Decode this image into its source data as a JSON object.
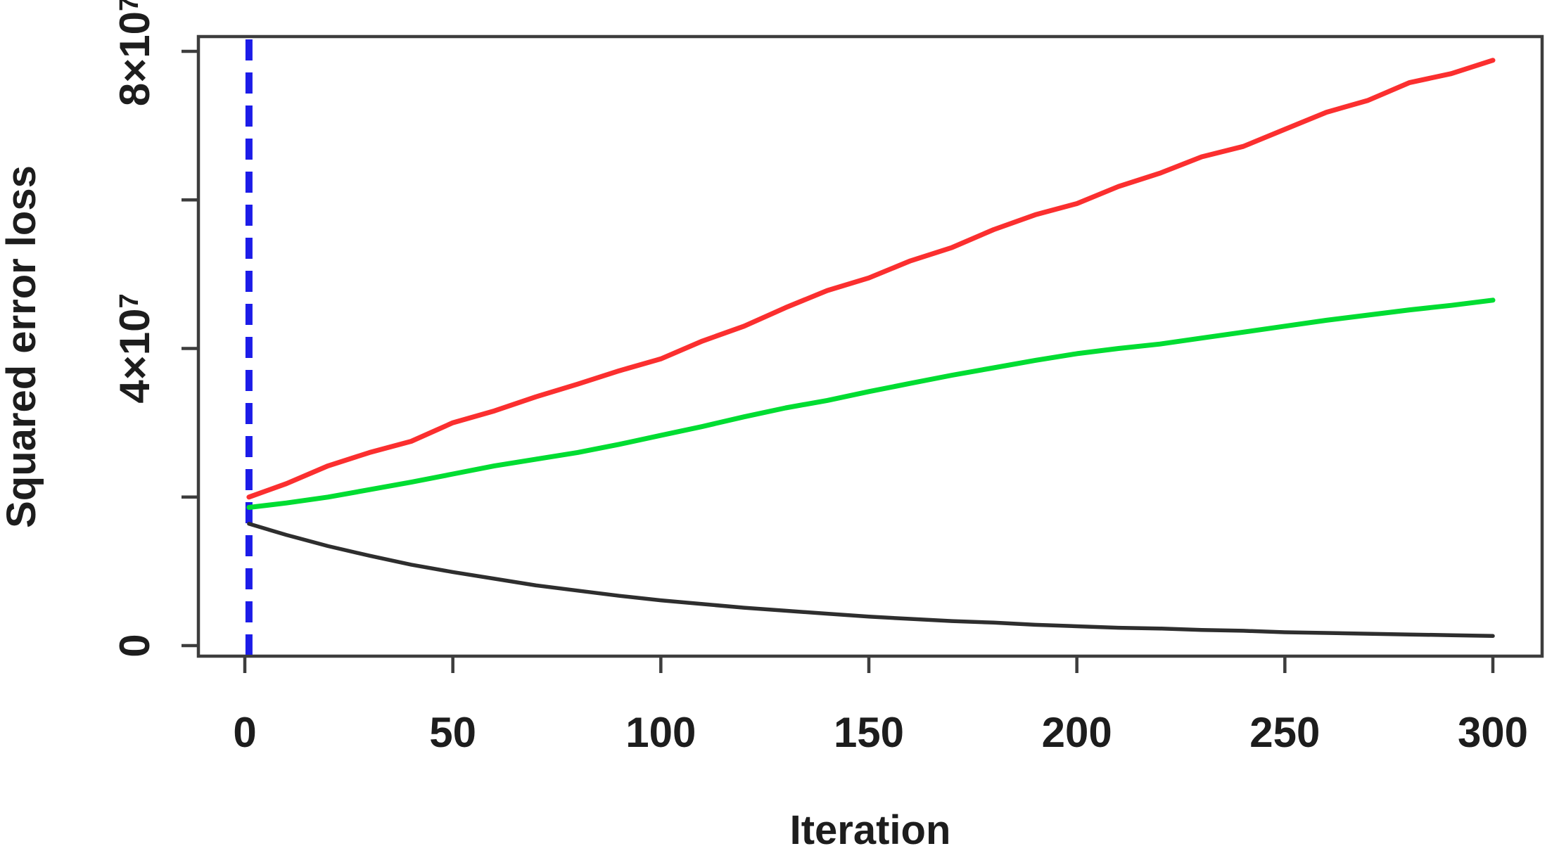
{
  "figure": {
    "background_color": "#ffffff",
    "box_color": "#3d3d3d",
    "text_color": "#1d1d1d"
  },
  "chart_data": {
    "type": "line",
    "title": "",
    "xlabel": "Iteration",
    "ylabel": "Squared error loss",
    "xlim": [
      -11,
      312
    ],
    "ylim": [
      0,
      83000000
    ],
    "grid": false,
    "legend": "none",
    "value_unit_multiplier": 10000000,
    "x_ticks": [
      {
        "value": 0,
        "label": "0"
      },
      {
        "value": 50,
        "label": "50"
      },
      {
        "value": 100,
        "label": "100"
      },
      {
        "value": 150,
        "label": "150"
      },
      {
        "value": 200,
        "label": "200"
      },
      {
        "value": 250,
        "label": "250"
      },
      {
        "value": 300,
        "label": "300"
      }
    ],
    "y_ticks": [
      {
        "value": 0,
        "label": "0",
        "sup": ""
      },
      {
        "value": 2,
        "label": "",
        "sup": ""
      },
      {
        "value": 4,
        "label": "4×10",
        "sup": "7"
      },
      {
        "value": 6,
        "label": "",
        "sup": ""
      },
      {
        "value": 8,
        "label": "8×10",
        "sup": "7"
      }
    ],
    "vline": {
      "x": 1,
      "color": "#1c1ce8",
      "style": "dashed",
      "dash": [
        30,
        17
      ],
      "width": 10
    },
    "x": [
      1,
      10,
      20,
      30,
      40,
      50,
      60,
      70,
      80,
      90,
      100,
      110,
      120,
      130,
      140,
      150,
      160,
      170,
      180,
      190,
      200,
      210,
      220,
      230,
      240,
      250,
      260,
      270,
      280,
      290,
      300
    ],
    "series": [
      {
        "name": "red-line",
        "color": "#fb2f2f",
        "width": 7,
        "values_e7": [
          2.0,
          2.18,
          2.42,
          2.6,
          2.75,
          3.0,
          3.16,
          3.35,
          3.52,
          3.7,
          3.86,
          4.1,
          4.3,
          4.55,
          4.78,
          4.95,
          5.18,
          5.36,
          5.6,
          5.8,
          5.95,
          6.18,
          6.36,
          6.58,
          6.72,
          6.95,
          7.18,
          7.34,
          7.58,
          7.7,
          7.88
        ]
      },
      {
        "name": "green-line",
        "color": "#00dd32",
        "width": 7,
        "values_e7": [
          1.86,
          1.92,
          2.0,
          2.1,
          2.2,
          2.31,
          2.42,
          2.51,
          2.6,
          2.71,
          2.83,
          2.95,
          3.08,
          3.2,
          3.3,
          3.42,
          3.53,
          3.64,
          3.74,
          3.84,
          3.93,
          4.0,
          4.06,
          4.14,
          4.22,
          4.3,
          4.38,
          4.45,
          4.52,
          4.58,
          4.65
        ]
      },
      {
        "name": "black-line",
        "color": "#2e2e2e",
        "width": 5.5,
        "values_e7": [
          1.64,
          1.49,
          1.34,
          1.21,
          1.09,
          0.99,
          0.9,
          0.81,
          0.74,
          0.67,
          0.61,
          0.56,
          0.51,
          0.47,
          0.43,
          0.39,
          0.36,
          0.33,
          0.31,
          0.28,
          0.26,
          0.24,
          0.23,
          0.21,
          0.2,
          0.18,
          0.17,
          0.16,
          0.15,
          0.14,
          0.13
        ]
      }
    ]
  }
}
